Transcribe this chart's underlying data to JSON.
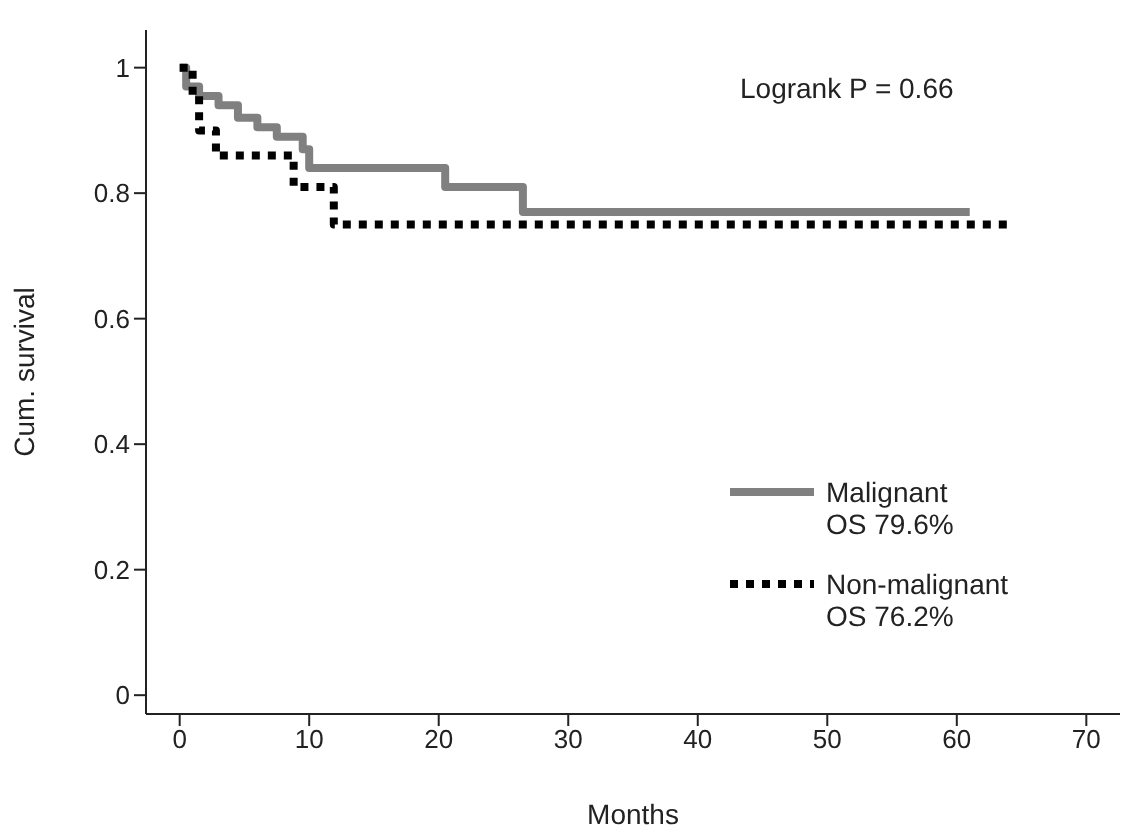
{
  "chart_data": {
    "type": "step",
    "xlabel": "Months",
    "ylabel": "Cum. survival",
    "annotations": [
      "Logrank P = 0.66",
      "OS 79.6%",
      "OS 76.2%"
    ],
    "series": [
      {
        "name": "Malignant",
        "color": "#808080",
        "line_style": "solid",
        "x": [
          0,
          0.5,
          1.5,
          3,
          4.5,
          6,
          7.5,
          9.5,
          10,
          20.5,
          26.5,
          61
        ],
        "values": [
          1,
          0.97,
          0.955,
          0.94,
          0.92,
          0.905,
          0.89,
          0.87,
          0.84,
          0.81,
          0.77,
          0.77
        ]
      },
      {
        "name": "Non-malignant",
        "color": "#000000",
        "line_style": "dotted",
        "x": [
          0,
          1,
          1.5,
          2.8,
          8.8,
          11.9,
          64
        ],
        "values": [
          1,
          0.955,
          0.9,
          0.86,
          0.81,
          0.75,
          0.75
        ]
      }
    ],
    "xlim": [
      -2.6,
      72.6
    ],
    "xticks": [
      0,
      10,
      20,
      30,
      40,
      50,
      60,
      70
    ],
    "ylim": [
      -0.03,
      1.06
    ],
    "yticks": [
      0,
      0.2,
      0.4,
      0.6,
      0.8,
      1
    ],
    "legend": "bottom right",
    "marker": "none",
    "grid": false
  }
}
